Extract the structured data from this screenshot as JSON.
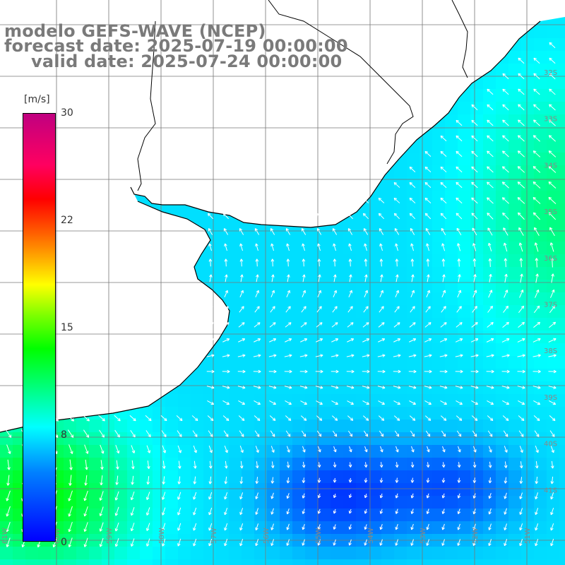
{
  "title": {
    "line1": "modelo GEFS-WAVE (NCEP)",
    "line2": "forecast date: 2025-07-19 00:00:00",
    "line3": "valid date: 2025-07-24 00:00:00"
  },
  "colorbar": {
    "unit": "[m/s]",
    "ticks": [
      "30",
      "22",
      "15",
      "8",
      "0"
    ],
    "range": [
      0,
      30
    ],
    "colors": [
      "#0000ff",
      "#0080ff",
      "#00ffff",
      "#00ff00",
      "#ffff00",
      "#ff0000",
      "#c00080"
    ]
  },
  "grid": {
    "lat_labels": [
      "32S",
      "33S",
      "34S",
      "35S",
      "36S",
      "37S",
      "38S",
      "39S",
      "40S",
      "41S"
    ],
    "lon_labels": [
      "61W",
      "60W",
      "59W",
      "58W",
      "57W",
      "56W",
      "55W",
      "54W",
      "53W",
      "52W",
      "51W"
    ]
  },
  "map": {
    "land_color": "#ffffff",
    "grid_color": "#777777",
    "coast_color": "#000000",
    "arrow_color": "#ffffff",
    "field_description": "wind speed with direction arrows"
  }
}
